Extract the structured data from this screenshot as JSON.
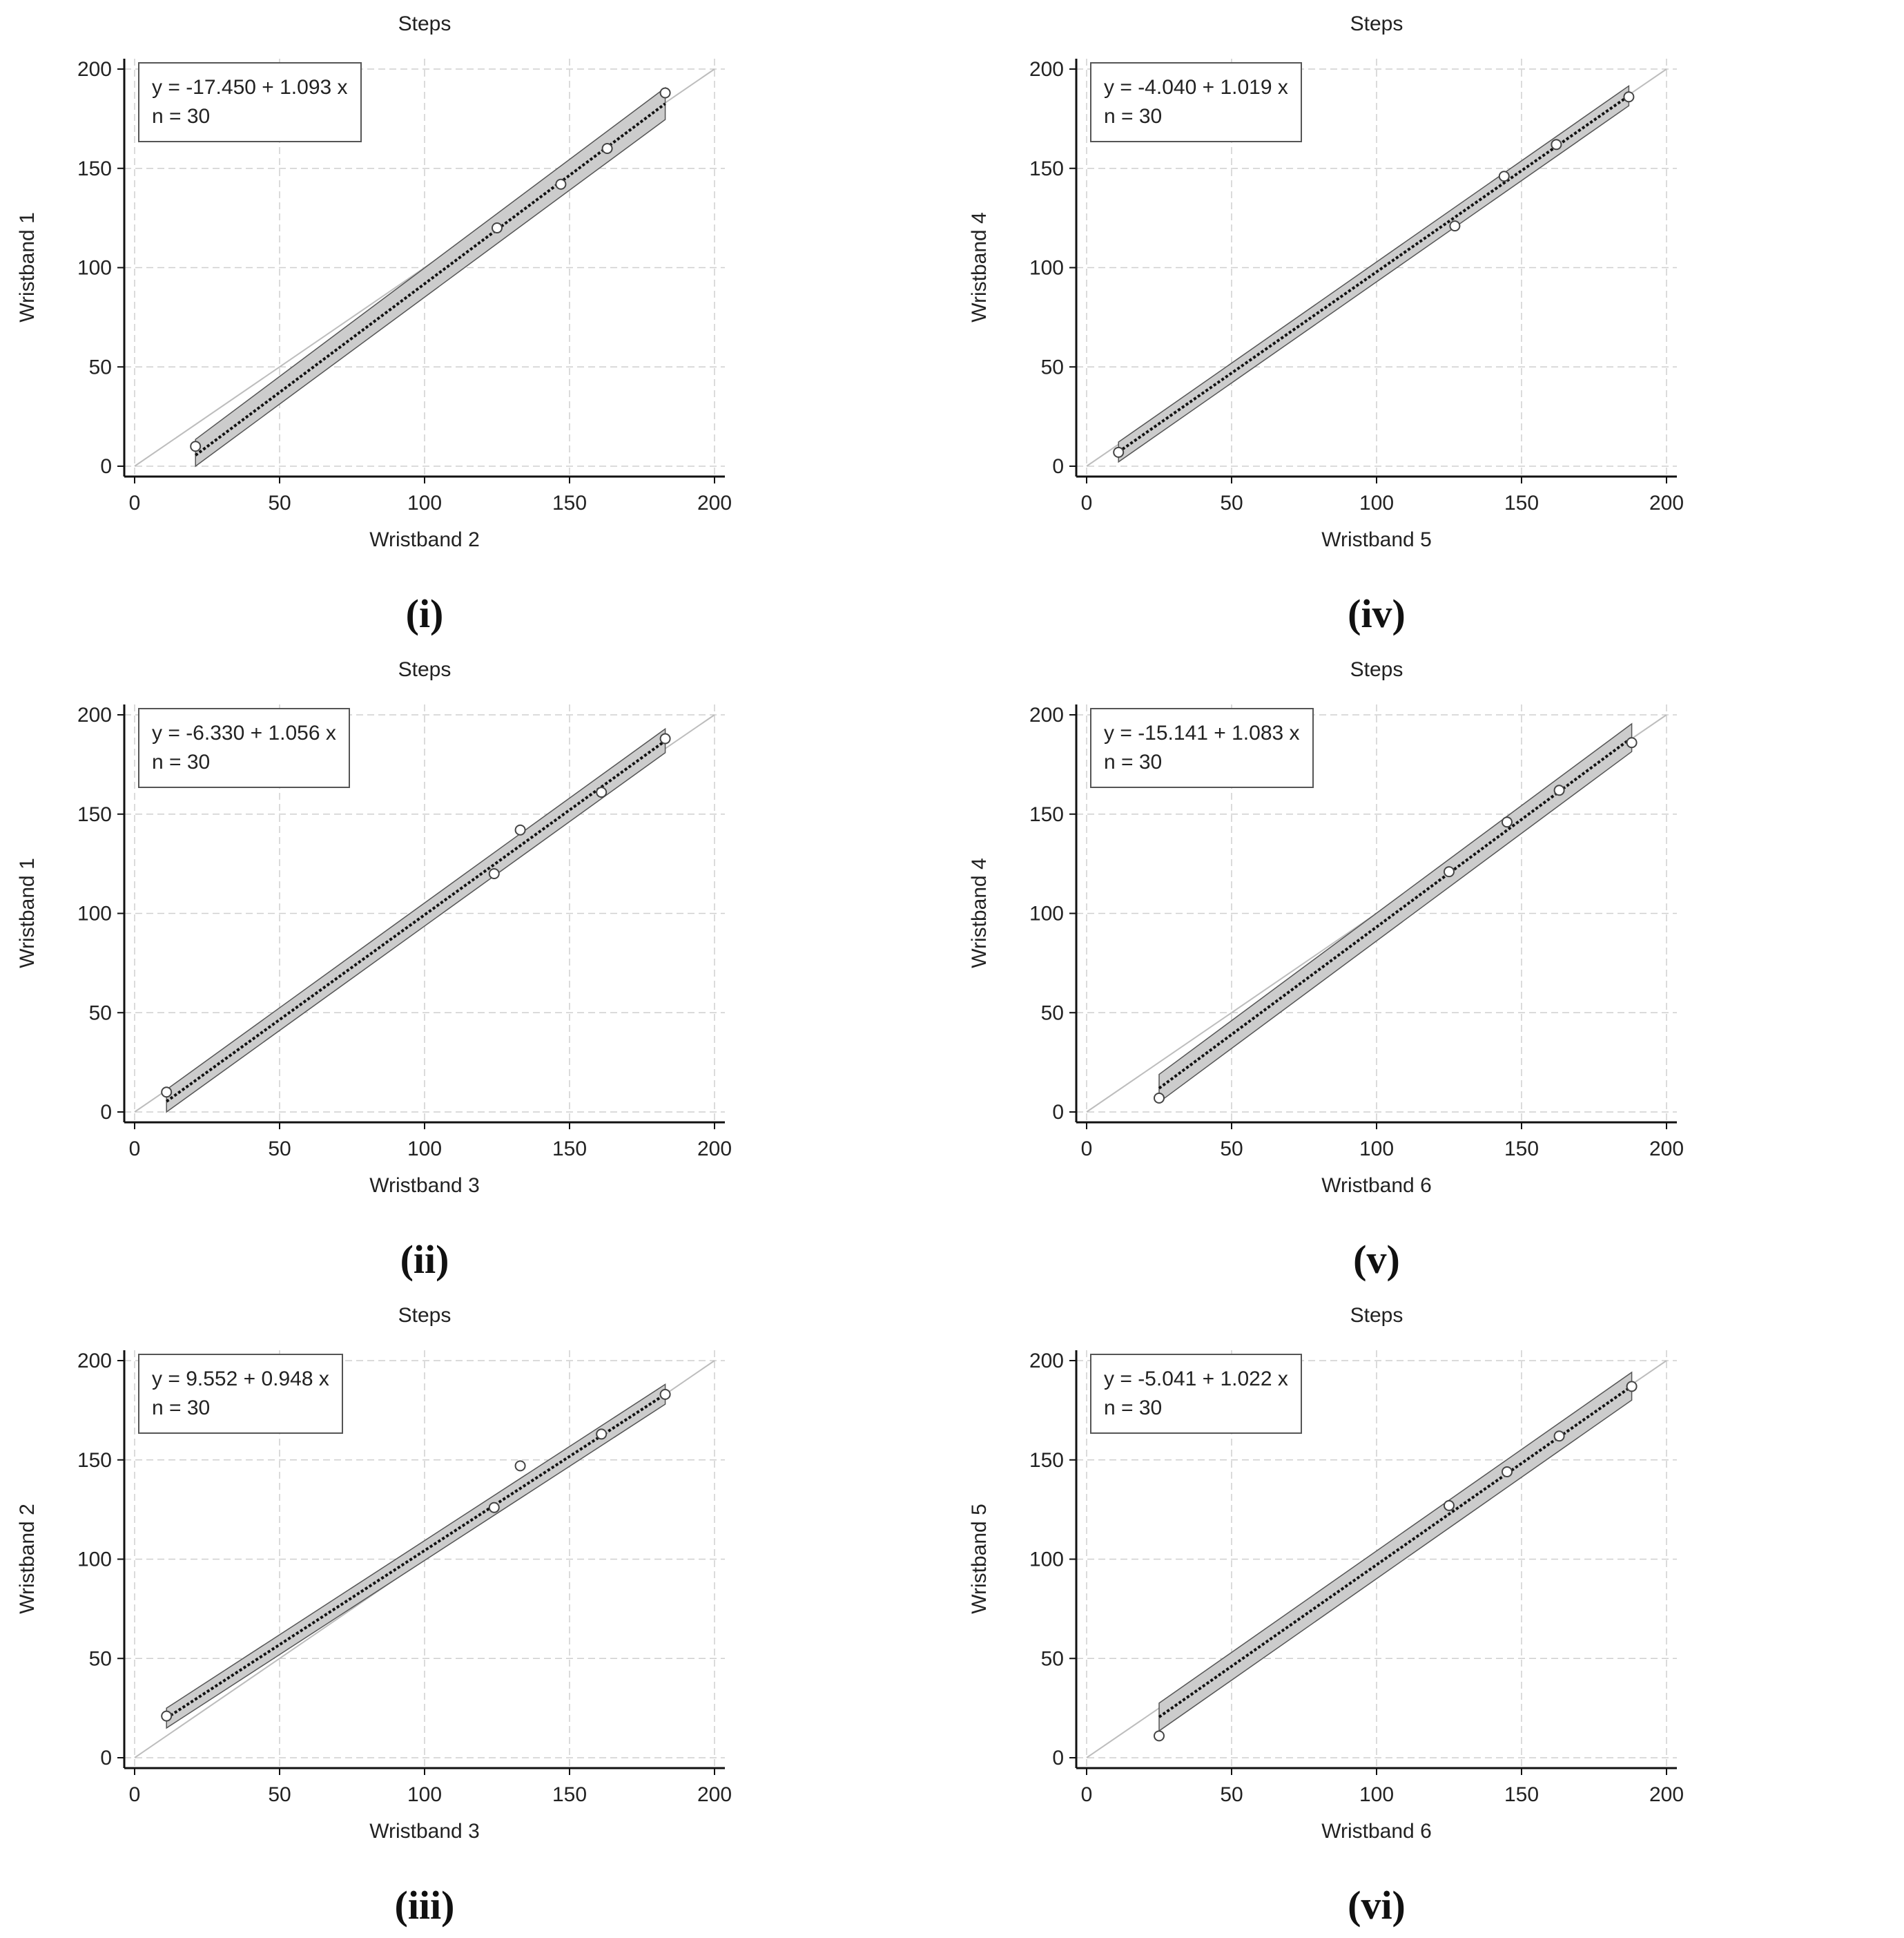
{
  "chart_data": [
    {
      "id": "i",
      "label": "(i)",
      "type": "scatter",
      "title": "Steps",
      "xlabel": "Wristband 2",
      "ylabel": "Wristband 1",
      "equation": "y = -17.450 + 1.093 x",
      "n": "n = 30",
      "xlim": [
        0,
        200
      ],
      "ylim": [
        0,
        200
      ],
      "xticks": [
        "0",
        "50",
        "100",
        "150",
        "200"
      ],
      "yticks": [
        "0",
        "50",
        "100",
        "150",
        "200"
      ],
      "intercept": -17.45,
      "slope": 1.093,
      "fit_range": [
        21,
        183
      ],
      "band_halfwidth": 8,
      "points": [
        [
          21,
          10
        ],
        [
          125,
          120
        ],
        [
          147,
          142
        ],
        [
          163,
          160
        ],
        [
          183,
          188
        ]
      ]
    },
    {
      "id": "iv",
      "label": "(iv)",
      "type": "scatter",
      "title": "Steps",
      "xlabel": "Wristband 5",
      "ylabel": "Wristband 4",
      "equation": "y = -4.040 + 1.019 x",
      "n": "n = 30",
      "xlim": [
        0,
        200
      ],
      "ylim": [
        0,
        200
      ],
      "xticks": [
        "0",
        "50",
        "100",
        "150",
        "200"
      ],
      "yticks": [
        "0",
        "50",
        "100",
        "150",
        "200"
      ],
      "intercept": -4.04,
      "slope": 1.019,
      "fit_range": [
        11,
        187
      ],
      "band_halfwidth": 5,
      "points": [
        [
          11,
          7
        ],
        [
          127,
          121
        ],
        [
          144,
          146
        ],
        [
          162,
          162
        ],
        [
          187,
          186
        ]
      ]
    },
    {
      "id": "ii",
      "label": "(ii)",
      "type": "scatter",
      "title": "Steps",
      "xlabel": "Wristband 3",
      "ylabel": "Wristband 1",
      "equation": "y = -6.330 + 1.056 x",
      "n": "n = 30",
      "xlim": [
        0,
        200
      ],
      "ylim": [
        0,
        200
      ],
      "xticks": [
        "0",
        "50",
        "100",
        "150",
        "200"
      ],
      "yticks": [
        "0",
        "50",
        "100",
        "150",
        "200"
      ],
      "intercept": -6.33,
      "slope": 1.056,
      "fit_range": [
        11,
        183
      ],
      "band_halfwidth": 6,
      "points": [
        [
          11,
          10
        ],
        [
          124,
          120
        ],
        [
          133,
          142
        ],
        [
          161,
          161
        ],
        [
          183,
          188
        ]
      ]
    },
    {
      "id": "v",
      "label": "(v)",
      "type": "scatter",
      "title": "Steps",
      "xlabel": "Wristband 6",
      "ylabel": "Wristband 4",
      "equation": "y = -15.141 + 1.083 x",
      "n": "n = 30",
      "xlim": [
        0,
        200
      ],
      "ylim": [
        0,
        200
      ],
      "xticks": [
        "0",
        "50",
        "100",
        "150",
        "200"
      ],
      "yticks": [
        "0",
        "50",
        "100",
        "150",
        "200"
      ],
      "intercept": -15.141,
      "slope": 1.083,
      "fit_range": [
        25,
        188
      ],
      "band_halfwidth": 7,
      "points": [
        [
          25,
          7
        ],
        [
          125,
          121
        ],
        [
          145,
          146
        ],
        [
          163,
          162
        ],
        [
          188,
          186
        ]
      ]
    },
    {
      "id": "iii",
      "label": "(iii)",
      "type": "scatter",
      "title": "Steps",
      "xlabel": "Wristband 3",
      "ylabel": "Wristband 2",
      "equation": "y = 9.552 + 0.948 x",
      "n": "n = 30",
      "xlim": [
        0,
        200
      ],
      "ylim": [
        0,
        200
      ],
      "xticks": [
        "0",
        "50",
        "100",
        "150",
        "200"
      ],
      "yticks": [
        "0",
        "50",
        "100",
        "150",
        "200"
      ],
      "intercept": 9.552,
      "slope": 0.948,
      "fit_range": [
        11,
        183
      ],
      "band_halfwidth": 5,
      "points": [
        [
          11,
          21
        ],
        [
          124,
          126
        ],
        [
          133,
          147
        ],
        [
          161,
          163
        ],
        [
          183,
          183
        ]
      ]
    },
    {
      "id": "vi",
      "label": "(vi)",
      "type": "scatter",
      "title": "Steps",
      "xlabel": "Wristband 6",
      "ylabel": "Wristband 5",
      "equation": "y = -5.041 + 1.022 x",
      "n": "n = 30",
      "xlim": [
        0,
        200
      ],
      "ylim": [
        0,
        200
      ],
      "xticks": [
        "0",
        "50",
        "100",
        "150",
        "200"
      ],
      "yticks": [
        "0",
        "50",
        "100",
        "150",
        "200"
      ],
      "intercept": -5.041,
      "slope": 1.022,
      "fit_range": [
        25,
        188
      ],
      "band_halfwidth": 7,
      "points": [
        [
          25,
          11
        ],
        [
          125,
          127
        ],
        [
          145,
          144
        ],
        [
          163,
          162
        ],
        [
          188,
          187
        ]
      ]
    }
  ]
}
